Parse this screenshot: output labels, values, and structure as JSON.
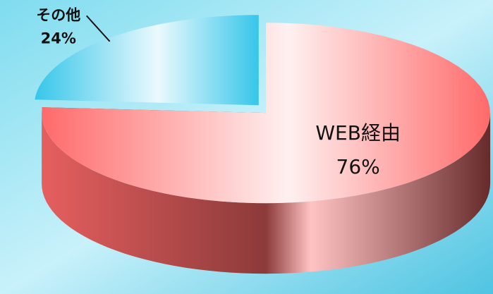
{
  "chart_data": {
    "type": "pie",
    "categories": [
      "WEB経由",
      "その他"
    ],
    "values": [
      76,
      24
    ],
    "value_labels": [
      "76%",
      "24%"
    ],
    "colors": [
      "#ff6a6a",
      "#36c6ea"
    ]
  }
}
